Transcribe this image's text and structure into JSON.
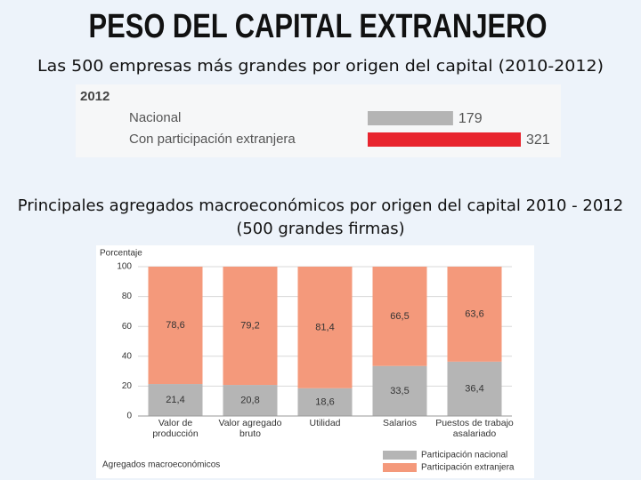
{
  "page_title": "PESO DEL CAPITAL EXTRANJERO",
  "chart_data": [
    {
      "type": "hbar",
      "title": "Las 500 empresas más grandes por origen del capital (2010-2012)",
      "subtitle": "2012",
      "categories": [
        "Nacional",
        "Con participación extranjera"
      ],
      "values": [
        179,
        321
      ],
      "colors": [
        "#b4b4b4",
        "#e8242e"
      ]
    },
    {
      "type": "stacked_bar",
      "title": "Principales agregados macroeconómicos por origen del capital 2010 - 2012 (500 grandes firmas)",
      "ylabel": "Porcentaje",
      "xlabel": "Agregados macroeconómicos",
      "categories": [
        "Valor de\nproducción",
        "Valor agregado\nbruto",
        "Utilidad",
        "Salarios",
        "Puestos de trabajo\nasalariado"
      ],
      "series": [
        {
          "name": "Participación nacional",
          "color": "#b5b5b5",
          "values": [
            21.4,
            20.8,
            18.6,
            33.5,
            36.4
          ],
          "value_labels": [
            "21,4",
            "20,8",
            "18,6",
            "33,5",
            "36,4"
          ]
        },
        {
          "name": "Participación extranjera",
          "color": "#f4997b",
          "values": [
            78.6,
            79.2,
            81.4,
            66.5,
            63.6
          ],
          "value_labels": [
            "78,6",
            "79,2",
            "81,4",
            "66,5",
            "63,6"
          ]
        }
      ],
      "ylim": [
        0,
        100
      ],
      "yticks": [
        0,
        20,
        40,
        60,
        80,
        100
      ],
      "grid": true,
      "legend": "bottom-right"
    }
  ]
}
